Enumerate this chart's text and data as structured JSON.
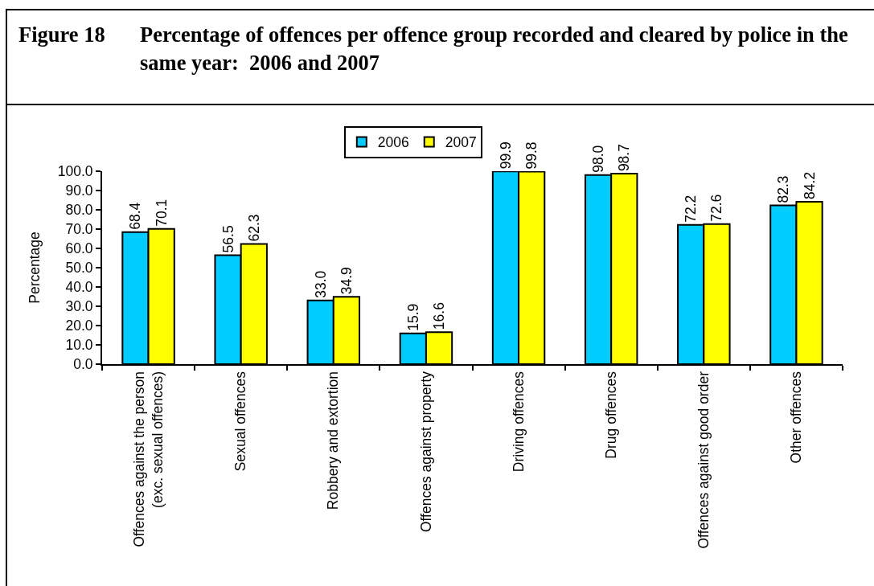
{
  "chart_data": {
    "type": "bar",
    "title": "Percentage of offences per offence group recorded and cleared by police in the same year:  2006 and 2007",
    "annotations": [
      "Figure 18"
    ],
    "ylabel": "Percentage",
    "categories": [
      "Offences against the person (exc. sexual offences)",
      "Sexual offences",
      "Robbery and extortion",
      "Offences against property",
      "Driving offences",
      "Drug offences",
      "Offences against good order",
      "Other offences"
    ],
    "series": [
      {
        "name": "2006",
        "color": "#00ccff",
        "values": [
          68.4,
          56.5,
          33.0,
          15.9,
          99.9,
          98.0,
          72.2,
          82.3
        ],
        "value_labels": [
          "68.4",
          "56.5",
          "33.0",
          "15.9",
          "99.9",
          "98.0",
          "72.2",
          "82.3"
        ]
      },
      {
        "name": "2007",
        "color": "#ffff00",
        "values": [
          70.1,
          62.3,
          34.9,
          16.6,
          99.8,
          98.7,
          72.6,
          84.2
        ],
        "value_labels": [
          "70.1",
          "62.3",
          "34.9",
          "16.6",
          "99.8",
          "98.7",
          "72.6",
          "84.2"
        ]
      }
    ],
    "ylim": [
      0,
      100
    ],
    "yticks": [
      {
        "value": 0,
        "label": "0.0"
      },
      {
        "value": 10,
        "label": "10.0"
      },
      {
        "value": 20,
        "label": "20.0"
      },
      {
        "value": 30,
        "label": "30.0"
      },
      {
        "value": 40,
        "label": "40.0"
      },
      {
        "value": 50,
        "label": "50.0"
      },
      {
        "value": 60,
        "label": "60.0"
      },
      {
        "value": 70,
        "label": "70.0"
      },
      {
        "value": 80,
        "label": "80.0"
      },
      {
        "value": 90,
        "label": "90.0"
      },
      {
        "value": 100,
        "label": "100.0"
      }
    ],
    "grid": false,
    "legend": "top"
  }
}
